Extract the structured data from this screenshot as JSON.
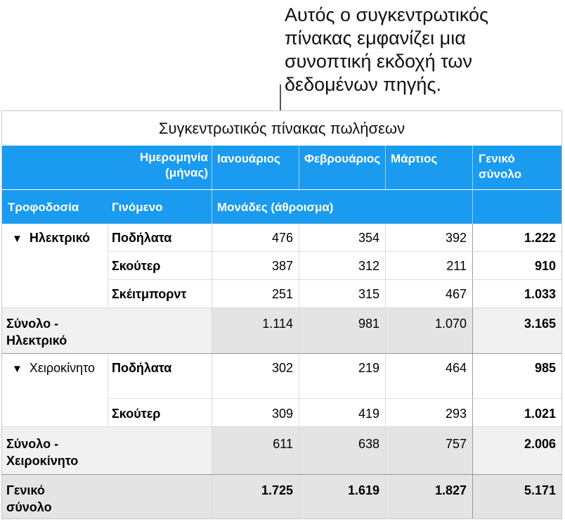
{
  "callout": {
    "lines": [
      "Αυτός ο συγκεντρωτικός",
      "πίνακας εμφανίζει μια",
      "συνοπτική εκδοχή των",
      "δεδομένων πηγής."
    ]
  },
  "table": {
    "title": "Συγκεντρωτικός πίνακας πωλήσεων",
    "header": {
      "date_label": "Ημερομηνία (μήνας)",
      "months": [
        "Ιανουάριος",
        "Φεβρουάριος",
        "Μάρτιος"
      ],
      "grand_total": "Γενικό σύνολο",
      "supply_label": "Τροφοδοσία",
      "product_label": "Γινόμενο",
      "measure_label": "Μονάδες (άθροισμα)"
    },
    "groups": [
      {
        "name": "Ηλεκτρικό",
        "rows": [
          {
            "product": "Ποδήλατα",
            "values": [
              "476",
              "354",
              "392"
            ],
            "total": "1.222"
          },
          {
            "product": "Σκούτερ",
            "values": [
              "387",
              "312",
              "211"
            ],
            "total": "910"
          },
          {
            "product": "Σκέιτμπορντ",
            "values": [
              "251",
              "315",
              "467"
            ],
            "total": "1.033"
          }
        ],
        "subtotal_label": "Σύνολο - Ηλεκτρικό",
        "subtotal_values": [
          "1.114",
          "981",
          "1.070"
        ],
        "subtotal_total": "3.165"
      },
      {
        "name": "Χειροκίνητο",
        "rows": [
          {
            "product": "Ποδήλατα",
            "values": [
              "302",
              "219",
              "464"
            ],
            "total": "985"
          },
          {
            "product": "Σκούτερ",
            "values": [
              "309",
              "419",
              "293"
            ],
            "total": "1.021"
          }
        ],
        "subtotal_label": "Σύνολο - Χειροκίνητο",
        "subtotal_values": [
          "611",
          "638",
          "757"
        ],
        "subtotal_total": "2.006"
      }
    ],
    "grand_total_row": {
      "label": "Γενικό σύνολο",
      "values": [
        "1.725",
        "1.619",
        "1.827"
      ],
      "total": "5.171"
    },
    "colors": {
      "header_blue": "#1a9bf0",
      "subtotal_gray": "#f1f1f1",
      "grand_total_gray": "#e4e4e4"
    }
  }
}
